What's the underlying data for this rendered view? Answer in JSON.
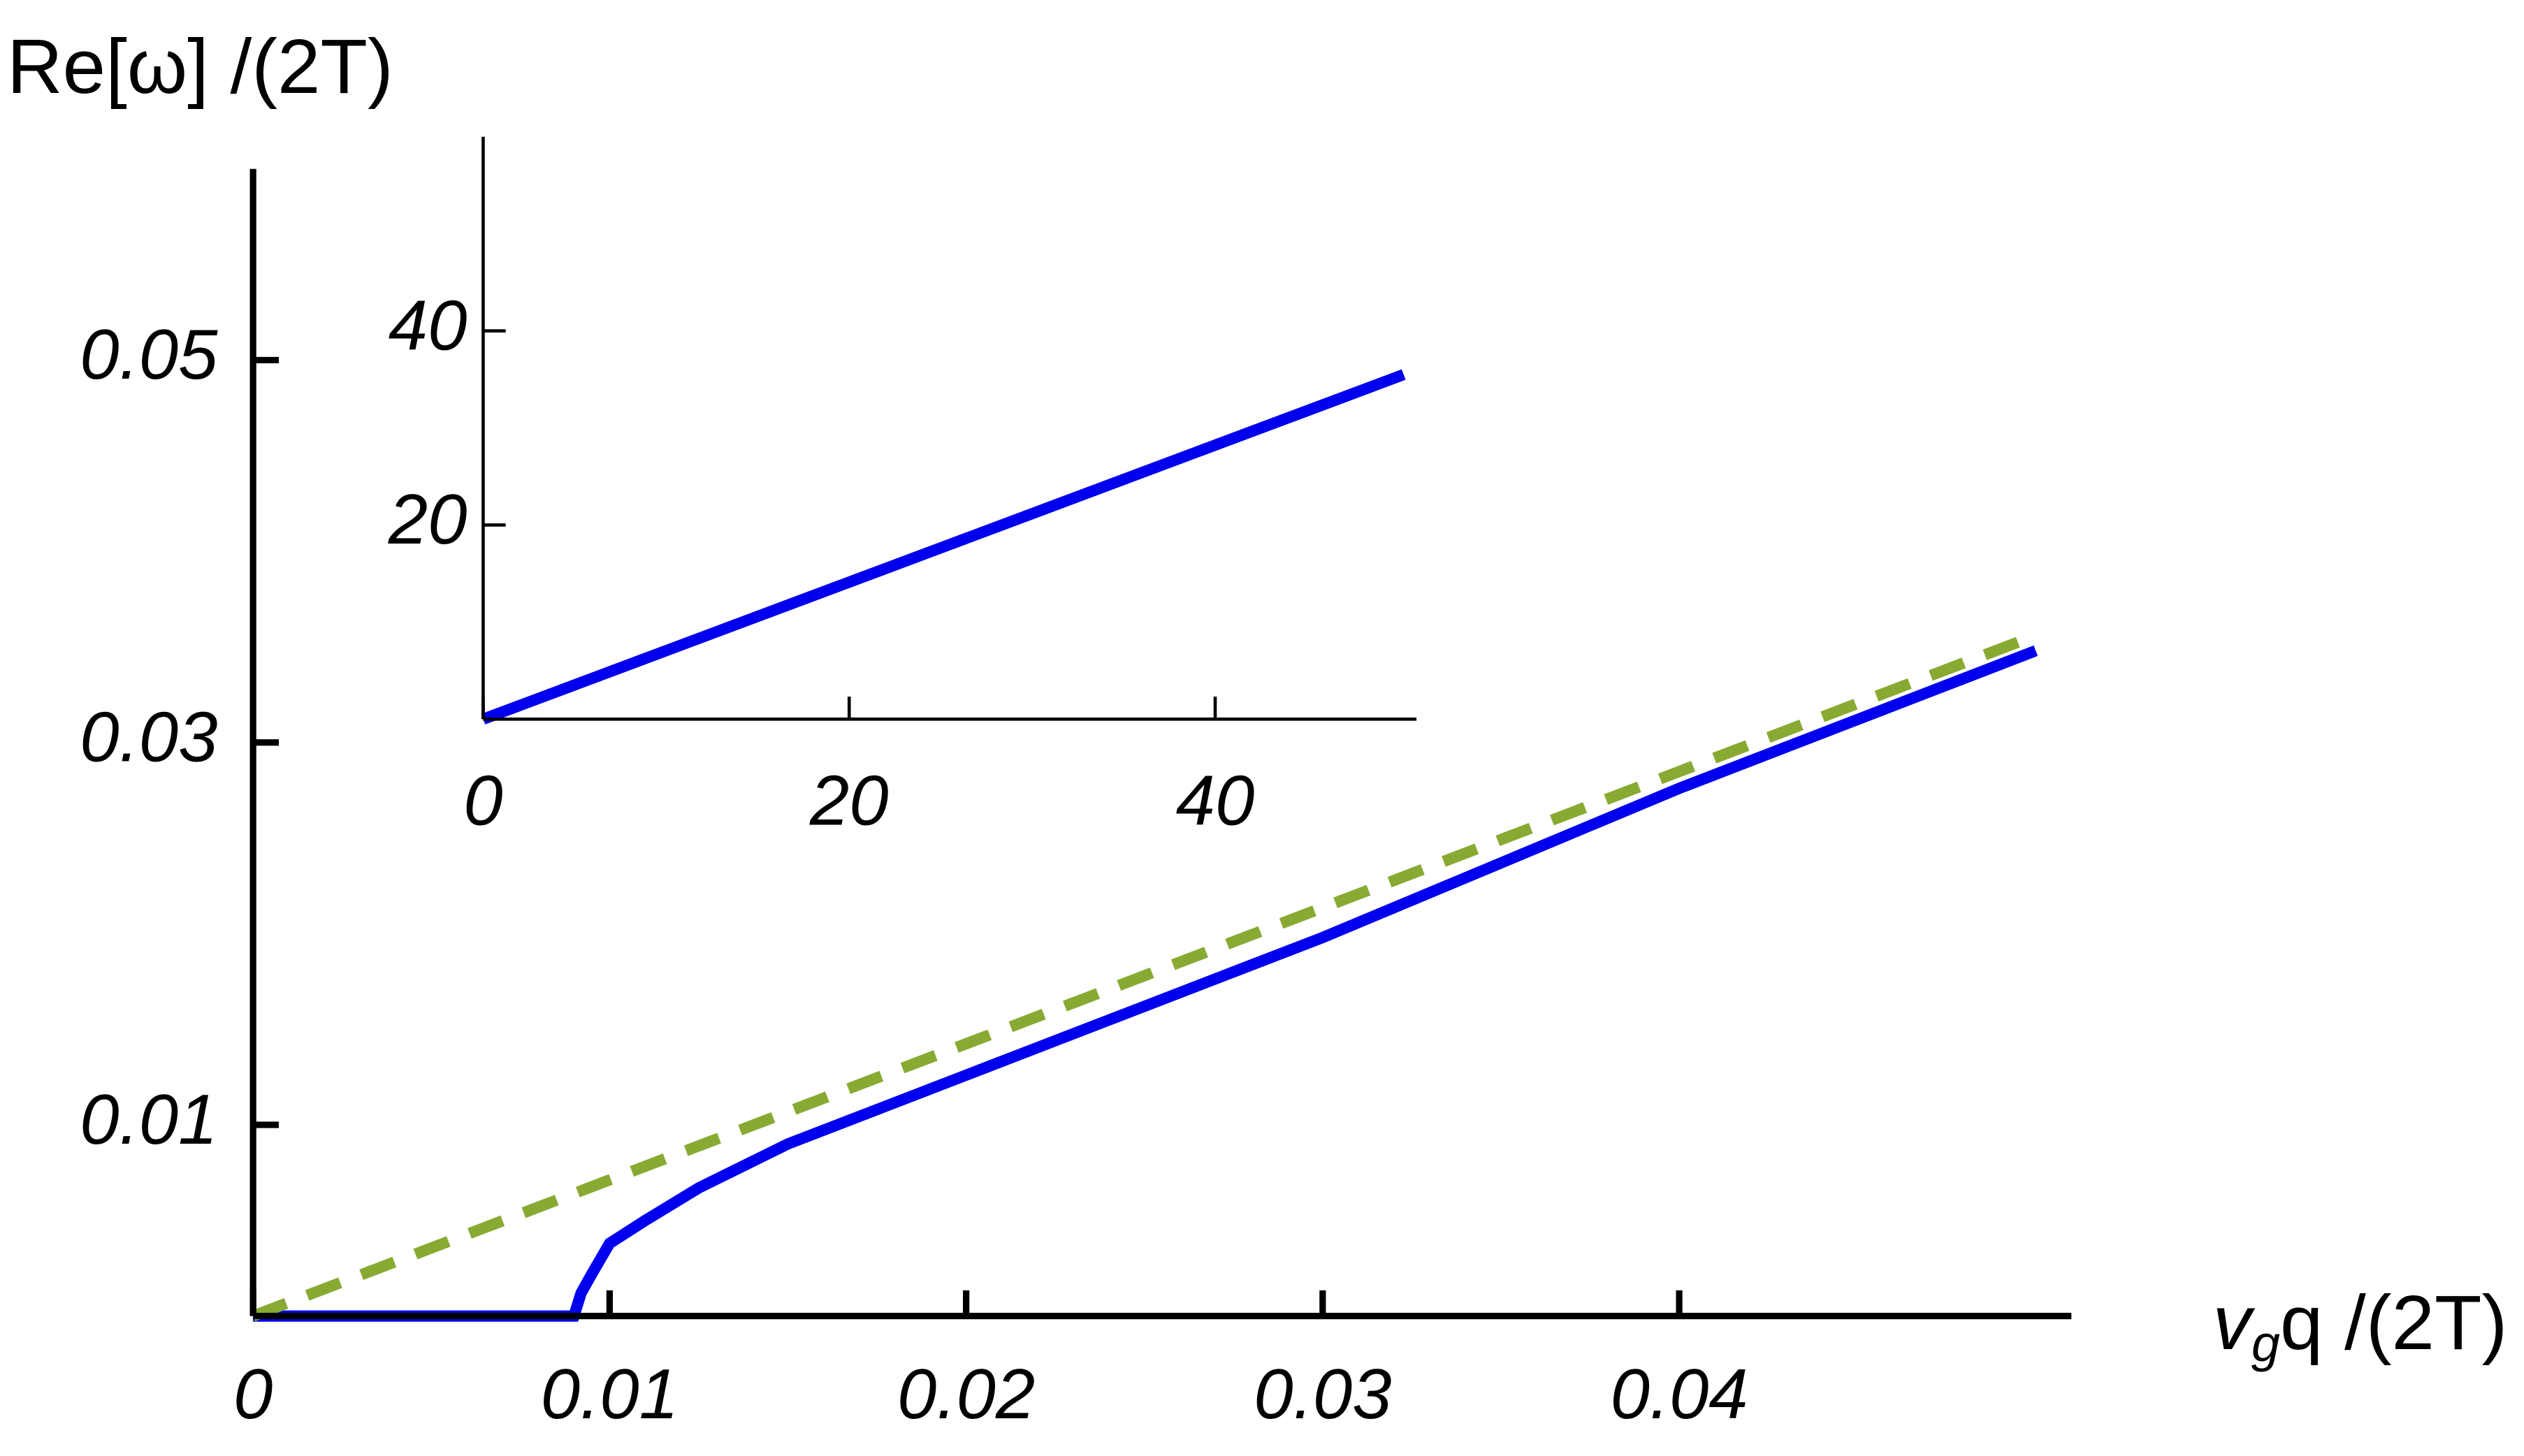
{
  "chart_data": [
    {
      "type": "line",
      "y_label": "Re[ω] /(2T)",
      "x_label": {
        "base": "v",
        "sub": "g",
        "rest": "q /(2T)"
      },
      "xlim": [
        0,
        0.051
      ],
      "ylim": [
        0,
        0.06
      ],
      "xticks": [
        0,
        0.01,
        0.02,
        0.03,
        0.04
      ],
      "yticks": [
        0.01,
        0.03,
        0.05
      ],
      "series": [
        {
          "color": "#0000ee",
          "line_style": "solid",
          "x": [
            0,
            0.009,
            0.0092,
            0.0095,
            0.01,
            0.011,
            0.0125,
            0.015,
            0.02,
            0.025,
            0.03,
            0.035,
            0.04,
            0.045,
            0.05
          ],
          "values": [
            0,
            0,
            0.0012,
            0.0022,
            0.0038,
            0.005,
            0.0067,
            0.009,
            0.0126,
            0.0162,
            0.0198,
            0.0237,
            0.0276,
            0.0312,
            0.0348
          ]
        },
        {
          "color": "#88aa33",
          "line_style": "dashed",
          "x": [
            0,
            0.05
          ],
          "values": [
            0,
            0.0356
          ]
        }
      ]
    },
    {
      "type": "line",
      "xlim": [
        0,
        51
      ],
      "ylim": [
        0,
        60
      ],
      "xticks": [
        0,
        20,
        40
      ],
      "yticks": [
        20,
        40
      ],
      "series": [
        {
          "color": "#0000ee",
          "line_style": "solid",
          "x": [
            0,
            50.3
          ],
          "values": [
            0,
            35.5
          ]
        }
      ]
    }
  ]
}
